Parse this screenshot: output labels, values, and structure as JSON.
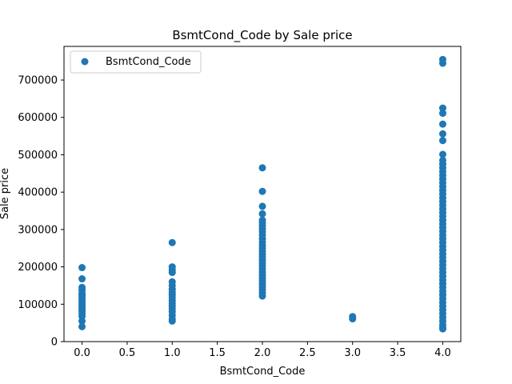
{
  "chart_data": {
    "type": "scatter",
    "title": "BsmtCond_Code by Sale price",
    "xlabel": "BsmtCond_Code",
    "ylabel": "Sale price",
    "xlim": [
      -0.2,
      4.2
    ],
    "ylim": [
      0,
      790000
    ],
    "x_ticks": [
      0.0,
      0.5,
      1.0,
      1.5,
      2.0,
      2.5,
      3.0,
      3.5,
      4.0
    ],
    "x_tick_labels": [
      "0.0",
      "0.5",
      "1.0",
      "1.5",
      "2.0",
      "2.5",
      "3.0",
      "3.5",
      "4.0"
    ],
    "y_ticks": [
      0,
      100000,
      200000,
      300000,
      400000,
      500000,
      600000,
      700000
    ],
    "y_tick_labels": [
      "0",
      "100000",
      "200000",
      "300000",
      "400000",
      "500000",
      "600000",
      "700000"
    ],
    "grid": false,
    "legend": {
      "placement": "upper-left",
      "entries": [
        "BsmtCond_Code"
      ]
    },
    "marker_color": "#1f77b4",
    "series": [
      {
        "name": "BsmtCond_Code",
        "points": [
          {
            "x": 0,
            "y": 198000
          },
          {
            "x": 0,
            "y": 168000
          },
          {
            "x": 0,
            "y": 145000
          },
          {
            "x": 0,
            "y": 138000
          },
          {
            "x": 0,
            "y": 130000
          },
          {
            "x": 0,
            "y": 124000
          },
          {
            "x": 0,
            "y": 118000
          },
          {
            "x": 0,
            "y": 112000
          },
          {
            "x": 0,
            "y": 106000
          },
          {
            "x": 0,
            "y": 100000
          },
          {
            "x": 0,
            "y": 94000
          },
          {
            "x": 0,
            "y": 88000
          },
          {
            "x": 0,
            "y": 82000
          },
          {
            "x": 0,
            "y": 75000
          },
          {
            "x": 0,
            "y": 68000
          },
          {
            "x": 0,
            "y": 55000
          },
          {
            "x": 0,
            "y": 40000
          },
          {
            "x": 1,
            "y": 265000
          },
          {
            "x": 1,
            "y": 200000
          },
          {
            "x": 1,
            "y": 192000
          },
          {
            "x": 1,
            "y": 185000
          },
          {
            "x": 1,
            "y": 160000
          },
          {
            "x": 1,
            "y": 150000
          },
          {
            "x": 1,
            "y": 140000
          },
          {
            "x": 1,
            "y": 132000
          },
          {
            "x": 1,
            "y": 125000
          },
          {
            "x": 1,
            "y": 118000
          },
          {
            "x": 1,
            "y": 110000
          },
          {
            "x": 1,
            "y": 102000
          },
          {
            "x": 1,
            "y": 95000
          },
          {
            "x": 1,
            "y": 88000
          },
          {
            "x": 1,
            "y": 80000
          },
          {
            "x": 1,
            "y": 70000
          },
          {
            "x": 1,
            "y": 60000
          },
          {
            "x": 1,
            "y": 55000
          },
          {
            "x": 2,
            "y": 465000
          },
          {
            "x": 2,
            "y": 402000
          },
          {
            "x": 2,
            "y": 362000
          },
          {
            "x": 2,
            "y": 342000
          },
          {
            "x": 2,
            "y": 325000
          },
          {
            "x": 2,
            "y": 318000
          },
          {
            "x": 2,
            "y": 310000
          },
          {
            "x": 2,
            "y": 302000
          },
          {
            "x": 2,
            "y": 294000
          },
          {
            "x": 2,
            "y": 285000
          },
          {
            "x": 2,
            "y": 275000
          },
          {
            "x": 2,
            "y": 266000
          },
          {
            "x": 2,
            "y": 258000
          },
          {
            "x": 2,
            "y": 250000
          },
          {
            "x": 2,
            "y": 242000
          },
          {
            "x": 2,
            "y": 234000
          },
          {
            "x": 2,
            "y": 226000
          },
          {
            "x": 2,
            "y": 218000
          },
          {
            "x": 2,
            "y": 210000
          },
          {
            "x": 2,
            "y": 202000
          },
          {
            "x": 2,
            "y": 194000
          },
          {
            "x": 2,
            "y": 186000
          },
          {
            "x": 2,
            "y": 178000
          },
          {
            "x": 2,
            "y": 170000
          },
          {
            "x": 2,
            "y": 162000
          },
          {
            "x": 2,
            "y": 154000
          },
          {
            "x": 2,
            "y": 146000
          },
          {
            "x": 2,
            "y": 138000
          },
          {
            "x": 2,
            "y": 130000
          },
          {
            "x": 2,
            "y": 122000
          },
          {
            "x": 3,
            "y": 67000
          },
          {
            "x": 3,
            "y": 61000
          },
          {
            "x": 4,
            "y": 755000
          },
          {
            "x": 4,
            "y": 745000
          },
          {
            "x": 4,
            "y": 625000
          },
          {
            "x": 4,
            "y": 611000
          },
          {
            "x": 4,
            "y": 582000
          },
          {
            "x": 4,
            "y": 556000
          },
          {
            "x": 4,
            "y": 538000
          },
          {
            "x": 4,
            "y": 501000
          },
          {
            "x": 4,
            "y": 485000
          },
          {
            "x": 4,
            "y": 475000
          },
          {
            "x": 4,
            "y": 465000
          },
          {
            "x": 4,
            "y": 455000
          },
          {
            "x": 4,
            "y": 445000
          },
          {
            "x": 4,
            "y": 435000
          },
          {
            "x": 4,
            "y": 425000
          },
          {
            "x": 4,
            "y": 415000
          },
          {
            "x": 4,
            "y": 405000
          },
          {
            "x": 4,
            "y": 395000
          },
          {
            "x": 4,
            "y": 385000
          },
          {
            "x": 4,
            "y": 375000
          },
          {
            "x": 4,
            "y": 365000
          },
          {
            "x": 4,
            "y": 355000
          },
          {
            "x": 4,
            "y": 345000
          },
          {
            "x": 4,
            "y": 335000
          },
          {
            "x": 4,
            "y": 325000
          },
          {
            "x": 4,
            "y": 315000
          },
          {
            "x": 4,
            "y": 305000
          },
          {
            "x": 4,
            "y": 295000
          },
          {
            "x": 4,
            "y": 285000
          },
          {
            "x": 4,
            "y": 275000
          },
          {
            "x": 4,
            "y": 265000
          },
          {
            "x": 4,
            "y": 255000
          },
          {
            "x": 4,
            "y": 245000
          },
          {
            "x": 4,
            "y": 235000
          },
          {
            "x": 4,
            "y": 225000
          },
          {
            "x": 4,
            "y": 215000
          },
          {
            "x": 4,
            "y": 205000
          },
          {
            "x": 4,
            "y": 195000
          },
          {
            "x": 4,
            "y": 185000
          },
          {
            "x": 4,
            "y": 175000
          },
          {
            "x": 4,
            "y": 165000
          },
          {
            "x": 4,
            "y": 155000
          },
          {
            "x": 4,
            "y": 145000
          },
          {
            "x": 4,
            "y": 135000
          },
          {
            "x": 4,
            "y": 125000
          },
          {
            "x": 4,
            "y": 115000
          },
          {
            "x": 4,
            "y": 105000
          },
          {
            "x": 4,
            "y": 95000
          },
          {
            "x": 4,
            "y": 85000
          },
          {
            "x": 4,
            "y": 75000
          },
          {
            "x": 4,
            "y": 65000
          },
          {
            "x": 4,
            "y": 55000
          },
          {
            "x": 4,
            "y": 45000
          },
          {
            "x": 4,
            "y": 38000
          },
          {
            "x": 4,
            "y": 34000
          }
        ]
      }
    ]
  }
}
